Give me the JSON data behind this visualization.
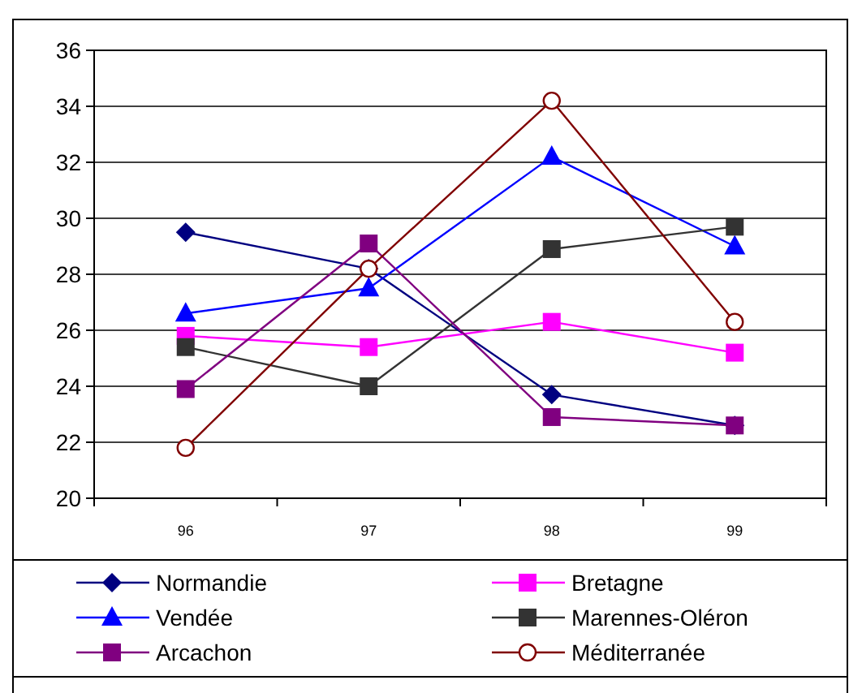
{
  "chart_data": {
    "type": "line",
    "categories": [
      "96",
      "97",
      "98",
      "99"
    ],
    "ylim": [
      20,
      36
    ],
    "yticks": [
      20,
      22,
      24,
      26,
      28,
      30,
      32,
      34,
      36
    ],
    "grid": "y",
    "legend": "bottom",
    "series": [
      {
        "name": "Normandie",
        "color": "#000080",
        "marker": "diamond",
        "values": [
          29.5,
          28.2,
          23.7,
          22.6
        ]
      },
      {
        "name": "Bretagne",
        "color": "#ff00ff",
        "marker": "square",
        "values": [
          25.8,
          25.4,
          26.3,
          25.2
        ]
      },
      {
        "name": "Vendée",
        "color": "#0000ff",
        "marker": "triangle",
        "values": [
          26.6,
          27.5,
          32.2,
          29.0
        ]
      },
      {
        "name": "Marennes-Oléron",
        "color": "#333333",
        "marker": "square",
        "values": [
          25.4,
          24.0,
          28.9,
          29.7
        ]
      },
      {
        "name": "Arcachon",
        "color": "#800080",
        "marker": "square",
        "values": [
          23.9,
          29.1,
          22.9,
          22.6
        ]
      },
      {
        "name": "Méditerranée",
        "color": "#800000",
        "marker": "circle",
        "values": [
          21.8,
          28.2,
          34.2,
          26.3
        ]
      }
    ]
  }
}
